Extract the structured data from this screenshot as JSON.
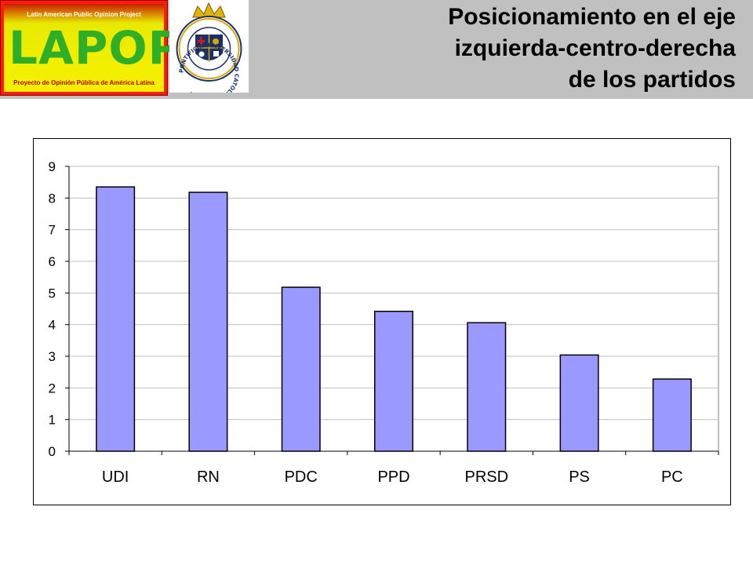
{
  "header": {
    "logo": {
      "top_text": "Latin American Public Opinion Project",
      "wordmark": "LAPOP",
      "bottom_text": "Proyecto de Opinión Pública de América Latina"
    },
    "seal": {
      "ring_text": "PONTIFICIA UNIVERSIDAD CATÓLICA DE CHILE"
    },
    "title_lines": [
      "Posicionamiento en el eje",
      "izquierda-centro-derecha",
      "de los partidos"
    ]
  },
  "colors": {
    "header_band": "#c0c0c0",
    "bar_fill": "#9999ff",
    "bar_stroke": "#000000",
    "gridline": "#c0c0c0",
    "plot_border": "#808080",
    "title_text": "#000000"
  },
  "chart_data": {
    "type": "bar",
    "title": "Posicionamiento en el eje izquierda-centro-derecha de los partidos",
    "categories": [
      "UDI",
      "RN",
      "PDC",
      "PPD",
      "PRSD",
      "PS",
      "PC"
    ],
    "values": [
      8.35,
      8.18,
      5.18,
      4.42,
      4.06,
      3.04,
      2.28
    ],
    "xlabel": "",
    "ylabel": "",
    "ylim": [
      0,
      9
    ],
    "yticks": [
      0,
      1,
      2,
      3,
      4,
      5,
      6,
      7,
      8,
      9
    ],
    "grid": true,
    "legend": "none"
  }
}
